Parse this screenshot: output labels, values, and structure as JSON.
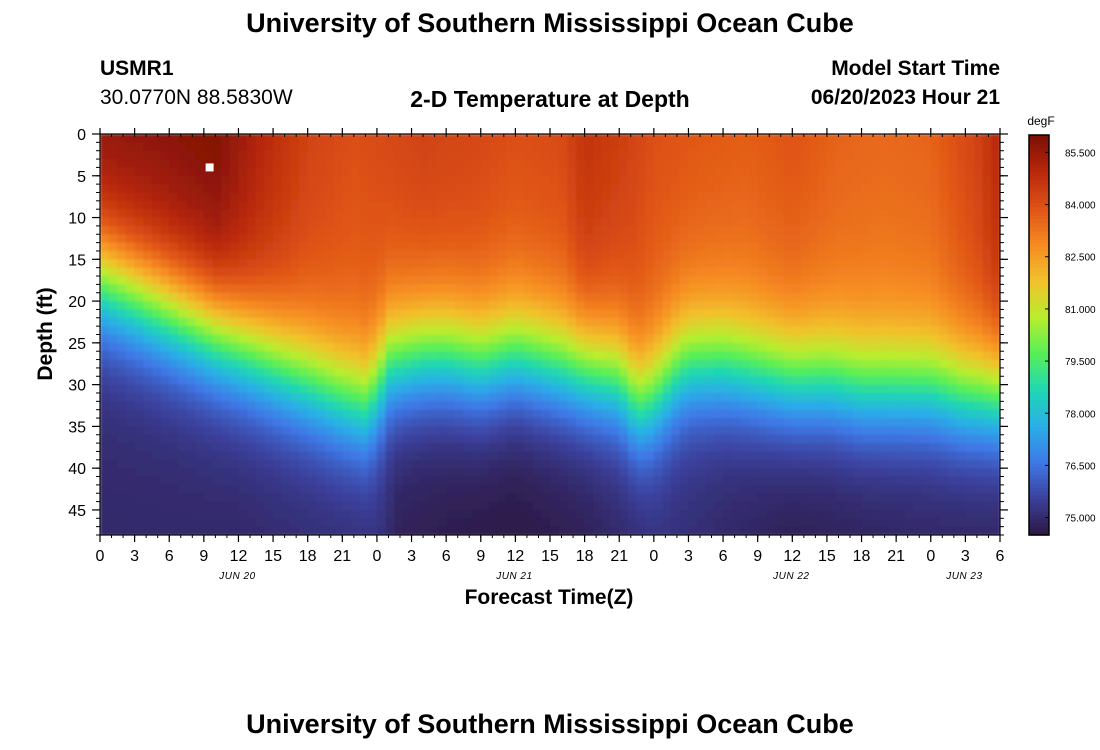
{
  "header": {
    "title": "University of Southern Mississippi Ocean Cube",
    "station_id": "USMR1",
    "station_coords": "30.0770N  88.5830W",
    "plot_title": "2-D Temperature at Depth",
    "model_start_label": "Model Start Time",
    "model_start_value": "06/20/2023 Hour 21"
  },
  "footer": {
    "title": "University of Southern Mississippi Ocean Cube"
  },
  "chart_data": {
    "type": "heatmap",
    "title": "2-D Temperature at Depth",
    "xlabel": "Forecast Time(Z)",
    "ylabel": "Depth (ft)",
    "x_range_hours": [
      0,
      78
    ],
    "y_range_ft": [
      0,
      48
    ],
    "y_ticks": [
      0,
      5,
      10,
      15,
      20,
      25,
      30,
      35,
      40,
      45
    ],
    "x_tick_labels": [
      "0",
      "3",
      "6",
      "9",
      "12",
      "15",
      "18",
      "21",
      "0",
      "3",
      "6",
      "9",
      "12",
      "15",
      "18",
      "21",
      "0",
      "3",
      "6",
      "9",
      "12",
      "15",
      "18",
      "21",
      "0",
      "3",
      "6"
    ],
    "date_labels": [
      {
        "label": "JUN 20",
        "hour": 12
      },
      {
        "label": "JUN 21",
        "hour": 36
      },
      {
        "label": "JUN 22",
        "hour": 60
      },
      {
        "label": "JUN 23",
        "hour": 75
      }
    ],
    "colorbar": {
      "unit": "degF",
      "min": 74.5,
      "max": 86.0,
      "tick_labels": [
        "85.500",
        "84.000",
        "82.500",
        "81.000",
        "79.500",
        "78.000",
        "76.500",
        "75.000"
      ],
      "tick_values": [
        85.5,
        84.0,
        82.5,
        81.0,
        79.5,
        78.0,
        76.5,
        75.0
      ],
      "colors": [
        "#2c1740",
        "#3b3f9a",
        "#3f78e6",
        "#2aaee8",
        "#1fd7b3",
        "#57ef58",
        "#b8ee2e",
        "#f2c12c",
        "#f68a22",
        "#df5316",
        "#b8280b",
        "#7c0f05"
      ]
    },
    "marker": {
      "hour": 9.5,
      "depth_ft": 4
    },
    "surface_series": {
      "hours": [
        0,
        6,
        10,
        14,
        18,
        22,
        24,
        28,
        32,
        36,
        40,
        42,
        46,
        48,
        52,
        56,
        60,
        64,
        68,
        72,
        76,
        78
      ],
      "temp_degF": [
        85.5,
        85.7,
        85.9,
        85.0,
        84.3,
        84.0,
        84.1,
        84.3,
        84.2,
        84.0,
        84.1,
        84.7,
        84.3,
        84.0,
        83.8,
        83.7,
        83.9,
        83.6,
        83.5,
        83.6,
        84.3,
        85.0
      ]
    },
    "mixed_layer_depth_series": {
      "hours": [
        0,
        3,
        6,
        9,
        12,
        15,
        18,
        21,
        23,
        24,
        25,
        28,
        30,
        33,
        36,
        39,
        42,
        45,
        46,
        47,
        48,
        50,
        51,
        54,
        57,
        60,
        63,
        66,
        69,
        72,
        75,
        78
      ],
      "depth_ft": [
        15,
        17,
        19,
        21,
        23,
        25,
        27,
        29,
        30,
        28,
        25,
        24,
        24,
        25,
        24,
        25,
        26,
        27,
        29,
        30,
        29,
        26,
        25,
        25,
        26,
        27,
        27,
        28,
        28,
        28,
        29,
        29
      ]
    },
    "bottom_temp_series": {
      "hours": [
        0,
        12,
        24,
        26,
        30,
        36,
        42,
        48,
        54,
        60,
        66,
        72,
        78
      ],
      "temp_degF": [
        75.0,
        75.0,
        75.3,
        74.8,
        74.7,
        74.6,
        74.8,
        75.3,
        75.0,
        74.8,
        74.9,
        75.0,
        75.0
      ]
    }
  }
}
